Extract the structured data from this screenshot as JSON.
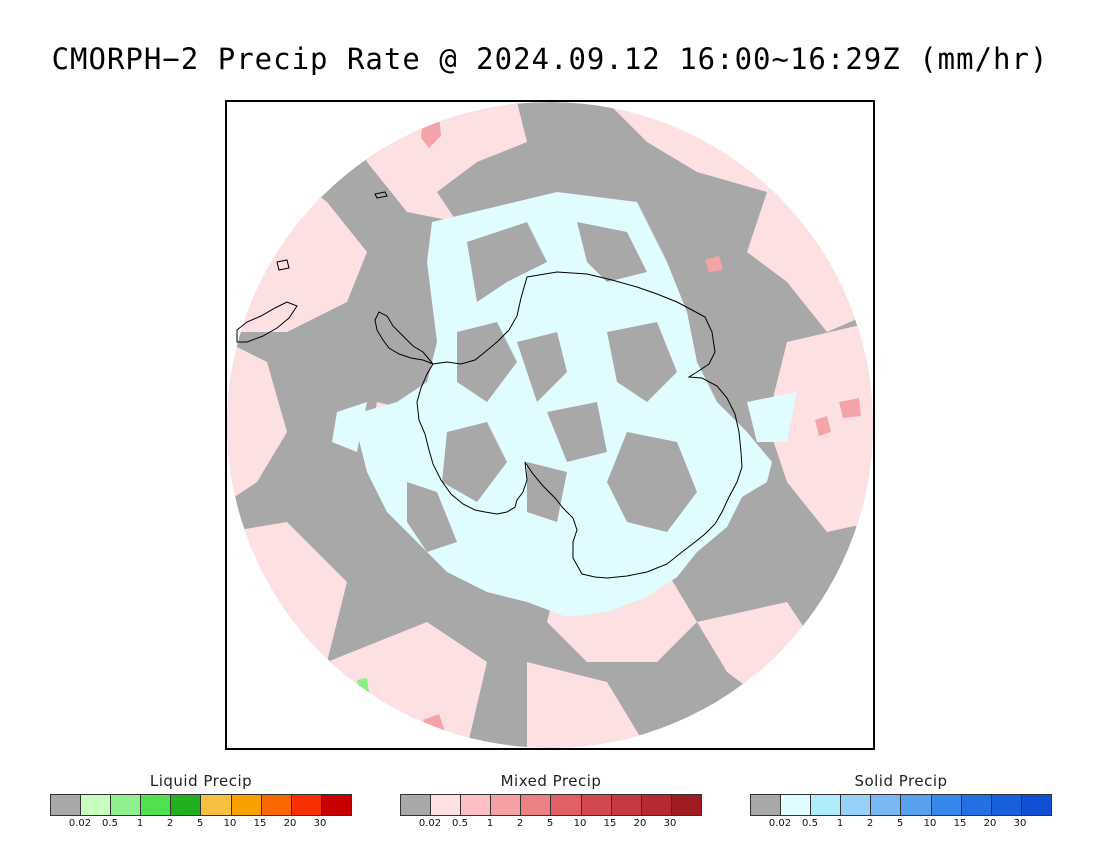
{
  "title": "CMORPH−2 Precip Rate @ 2024.09.12 16:00~16:29Z (mm/hr)",
  "map": {
    "projection": "south-polar-stereographic",
    "colors": {
      "background": "#ffffff",
      "no_precip_gray": "#a8a8a8",
      "mixed_light_pink": "#fde0e2",
      "solid_light_cyan": "#e0fcfe",
      "mixed_pink_mid": "#f4a4a8",
      "liquid_green": "#88f088",
      "coastline": "#000000"
    }
  },
  "legends": [
    {
      "name": "Liquid Precip",
      "colors": [
        "#a8a8a8",
        "#c8fcc0",
        "#90f090",
        "#50e050",
        "#20b020",
        "#f8c040",
        "#f8a000",
        "#f86800",
        "#f83000",
        "#c80000"
      ],
      "labels": [
        "0.02",
        "0.5",
        "1",
        "2",
        "5",
        "10",
        "15",
        "20",
        "30"
      ]
    },
    {
      "name": "Mixed Precip",
      "colors": [
        "#a8a8a8",
        "#fde0e2",
        "#fcc0c4",
        "#f4a0a4",
        "#ec8084",
        "#e06066",
        "#d44850",
        "#c83840",
        "#b82830",
        "#a01c20"
      ],
      "labels": [
        "0.02",
        "0.5",
        "1",
        "2",
        "5",
        "10",
        "15",
        "20",
        "30"
      ]
    },
    {
      "name": "Solid Precip",
      "colors": [
        "#a8a8a8",
        "#e0fcfe",
        "#b0ecfc",
        "#98d0f8",
        "#78b8f4",
        "#58a0f0",
        "#3888ec",
        "#2470e4",
        "#1860dc",
        "#1050d4"
      ],
      "labels": [
        "0.02",
        "0.5",
        "1",
        "2",
        "5",
        "10",
        "15",
        "20",
        "30"
      ]
    }
  ]
}
